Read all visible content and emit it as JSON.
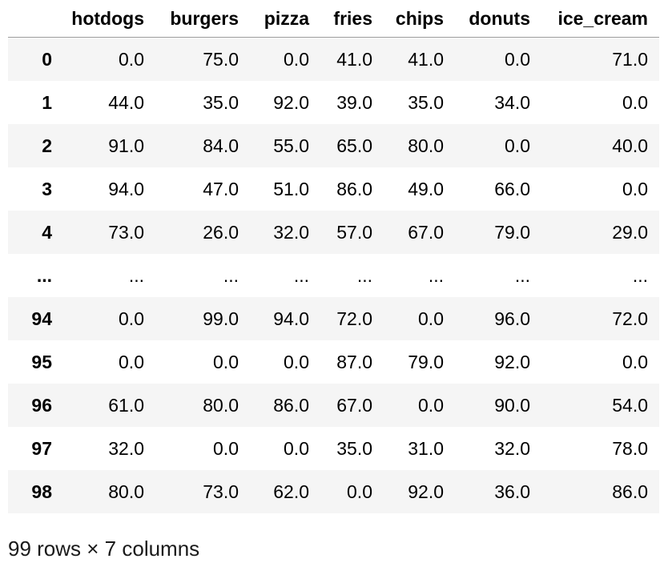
{
  "table": {
    "index_header": "",
    "columns": [
      "hotdogs",
      "burgers",
      "pizza",
      "fries",
      "chips",
      "donuts",
      "ice_cream"
    ],
    "rows": [
      {
        "index": "0",
        "values": [
          "0.0",
          "75.0",
          "0.0",
          "41.0",
          "41.0",
          "0.0",
          "71.0"
        ]
      },
      {
        "index": "1",
        "values": [
          "44.0",
          "35.0",
          "92.0",
          "39.0",
          "35.0",
          "34.0",
          "0.0"
        ]
      },
      {
        "index": "2",
        "values": [
          "91.0",
          "84.0",
          "55.0",
          "65.0",
          "80.0",
          "0.0",
          "40.0"
        ]
      },
      {
        "index": "3",
        "values": [
          "94.0",
          "47.0",
          "51.0",
          "86.0",
          "49.0",
          "66.0",
          "0.0"
        ]
      },
      {
        "index": "4",
        "values": [
          "73.0",
          "26.0",
          "32.0",
          "57.0",
          "67.0",
          "79.0",
          "29.0"
        ]
      },
      {
        "index": "...",
        "values": [
          "...",
          "...",
          "...",
          "...",
          "...",
          "...",
          "..."
        ]
      },
      {
        "index": "94",
        "values": [
          "0.0",
          "99.0",
          "94.0",
          "72.0",
          "0.0",
          "96.0",
          "72.0"
        ]
      },
      {
        "index": "95",
        "values": [
          "0.0",
          "0.0",
          "0.0",
          "87.0",
          "79.0",
          "92.0",
          "0.0"
        ]
      },
      {
        "index": "96",
        "values": [
          "61.0",
          "80.0",
          "86.0",
          "67.0",
          "0.0",
          "90.0",
          "54.0"
        ]
      },
      {
        "index": "97",
        "values": [
          "32.0",
          "0.0",
          "0.0",
          "35.0",
          "31.0",
          "32.0",
          "78.0"
        ]
      },
      {
        "index": "98",
        "values": [
          "80.0",
          "73.0",
          "62.0",
          "0.0",
          "92.0",
          "36.0",
          "86.0"
        ]
      }
    ]
  },
  "summary": "99 rows × 7 columns"
}
